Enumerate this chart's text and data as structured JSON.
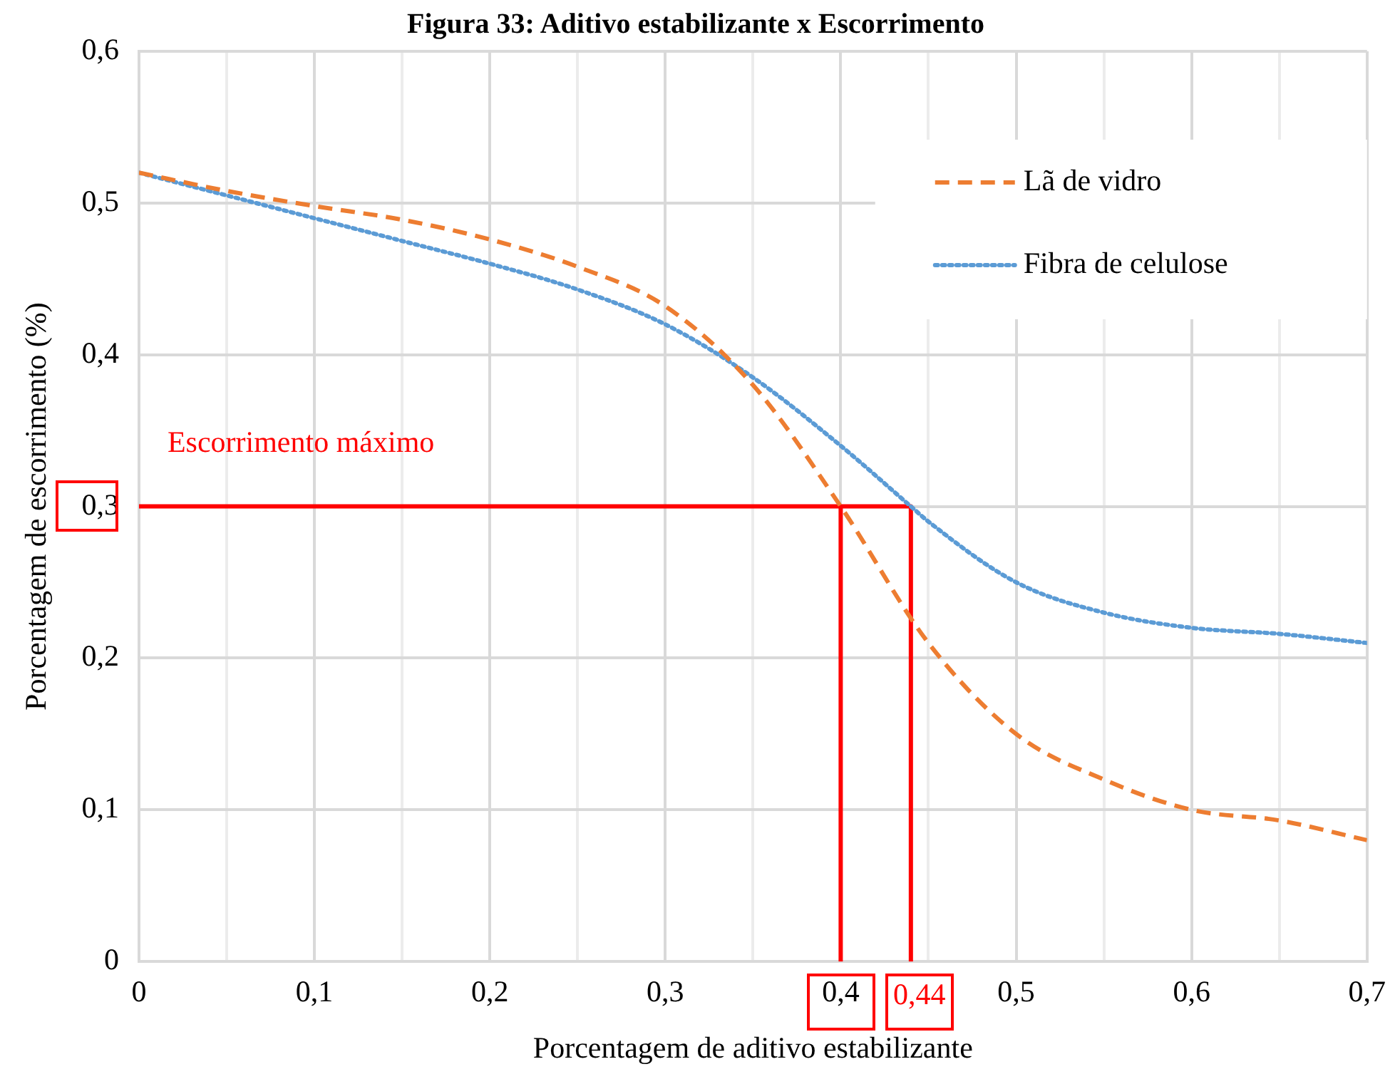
{
  "chart_data": {
    "type": "line",
    "title": "Figura 33: Aditivo estabilizante x Escorrimento",
    "xlabel": "Porcentagem de aditivo estabilizante",
    "ylabel": "Porcentagem de escorrimento (%)",
    "xlim": [
      0,
      0.7
    ],
    "ylim": [
      0,
      0.6
    ],
    "xticks": [
      0,
      {
        "value": 0.05,
        "label": null
      },
      {
        "value": 0.1,
        "label": "0,1"
      },
      {
        "value": 0.15,
        "label": null
      },
      {
        "value": 0.2,
        "label": "0,2"
      },
      {
        "value": 0.25,
        "label": null
      },
      {
        "value": 0.3,
        "label": "0,3"
      },
      {
        "value": 0.35,
        "label": null
      },
      {
        "value": 0.4,
        "label": "0,4"
      },
      {
        "value": 0.45,
        "label": null
      },
      {
        "value": 0.5,
        "label": "0,5"
      },
      {
        "value": 0.55,
        "label": null
      },
      {
        "value": 0.6,
        "label": "0,6"
      },
      {
        "value": 0.65,
        "label": null
      },
      {
        "value": 0.7,
        "label": "0,7"
      }
    ],
    "yticks": [
      0,
      {
        "value": 0.1,
        "label": "0,1"
      },
      {
        "value": 0.2,
        "label": "0,2"
      },
      {
        "value": 0.3,
        "label": "0,3"
      },
      {
        "value": 0.4,
        "label": "0,4"
      },
      {
        "value": 0.5,
        "label": "0,5"
      },
      {
        "value": 0.6,
        "label": "0,6"
      }
    ],
    "grid": true,
    "legend": "top right",
    "marker": "none",
    "series": [
      {
        "name": "Lã de vidro",
        "color": "#ed7d31",
        "line_style": "dashed",
        "x": [
          0,
          0.05,
          0.1,
          0.15,
          0.2,
          0.25,
          0.3,
          0.35,
          0.4,
          0.45,
          0.5,
          0.55,
          0.6,
          0.65,
          0.7
        ],
        "values": [
          0.52,
          0.508,
          0.498,
          0.489,
          0.476,
          0.458,
          0.432,
          0.38,
          0.3,
          0.21,
          0.15,
          0.12,
          0.1,
          0.093,
          0.08
        ]
      },
      {
        "name": "Fibra de celulose",
        "color": "#5b9bd5",
        "line_style": "dotted",
        "x": [
          0,
          0.05,
          0.1,
          0.15,
          0.2,
          0.25,
          0.3,
          0.35,
          0.4,
          0.44,
          0.45,
          0.5,
          0.55,
          0.6,
          0.65,
          0.7
        ],
        "values": [
          0.52,
          0.505,
          0.49,
          0.475,
          0.46,
          0.443,
          0.42,
          0.385,
          0.34,
          0.3,
          0.29,
          0.25,
          0.23,
          0.22,
          0.216,
          0.21
        ]
      },
      {
        "color": "#ff0000",
        "line_style": "solid",
        "x": [
          0,
          0.44,
          0.44
        ],
        "values": [
          0.3,
          0.3,
          0
        ]
      },
      {
        "color": "#ff0000",
        "line_style": "solid",
        "x": [
          0.4,
          0.4
        ],
        "values": [
          0.3,
          0
        ]
      }
    ],
    "annotations": [
      "Escorrimento máximo",
      {
        "text": "0,44",
        "x": 0.44,
        "y": 0
      }
    ]
  }
}
